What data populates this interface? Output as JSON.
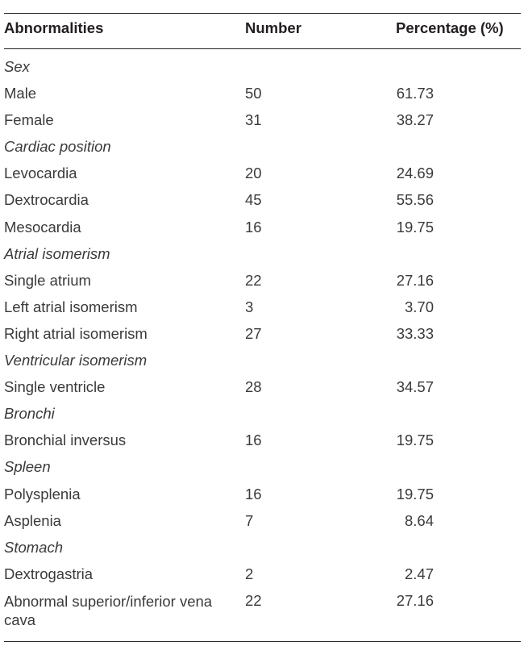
{
  "table": {
    "headers": {
      "abnormalities": "Abnormalities",
      "number": "Number",
      "percentage": "Percentage (%)"
    },
    "rows": [
      {
        "label": "Sex",
        "number": "",
        "percentage": "",
        "section": true
      },
      {
        "label": "Male",
        "number": "50",
        "percentage": "61.73",
        "section": false
      },
      {
        "label": "Female",
        "number": "31",
        "percentage": "38.27",
        "section": false
      },
      {
        "label": "Cardiac position",
        "number": "",
        "percentage": "",
        "section": true
      },
      {
        "label": "Levocardia",
        "number": "20",
        "percentage": "24.69",
        "section": false
      },
      {
        "label": "Dextrocardia",
        "number": "45",
        "percentage": "55.56",
        "section": false
      },
      {
        "label": "Mesocardia",
        "number": "16",
        "percentage": "19.75",
        "section": false
      },
      {
        "label": "Atrial isomerism",
        "number": "",
        "percentage": "",
        "section": true
      },
      {
        "label": "Single atrium",
        "number": "22",
        "percentage": "27.16",
        "section": false
      },
      {
        "label": "Left atrial isomerism",
        "number": "3",
        "percentage": "3.70",
        "section": false
      },
      {
        "label": "Right atrial isomerism",
        "number": "27",
        "percentage": "33.33",
        "section": false
      },
      {
        "label": "Ventricular isomerism",
        "number": "",
        "percentage": "",
        "section": true
      },
      {
        "label": "Single ventricle",
        "number": "28",
        "percentage": "34.57",
        "section": false
      },
      {
        "label": "Bronchi",
        "number": "",
        "percentage": "",
        "section": true
      },
      {
        "label": "Bronchial inversus",
        "number": "16",
        "percentage": "19.75",
        "section": false
      },
      {
        "label": "Spleen",
        "number": "",
        "percentage": "",
        "section": true
      },
      {
        "label": "Polysplenia",
        "number": "16",
        "percentage": "19.75",
        "section": false
      },
      {
        "label": "Asplenia",
        "number": "7",
        "percentage": "8.64",
        "section": false
      },
      {
        "label": "Stomach",
        "number": "",
        "percentage": "",
        "section": true
      },
      {
        "label": "Dextrogastria",
        "number": "2",
        "percentage": "2.47",
        "section": false
      },
      {
        "label": "Abnormal superior/inferior vena cava",
        "number": "22",
        "percentage": "27.16",
        "section": false
      }
    ]
  }
}
